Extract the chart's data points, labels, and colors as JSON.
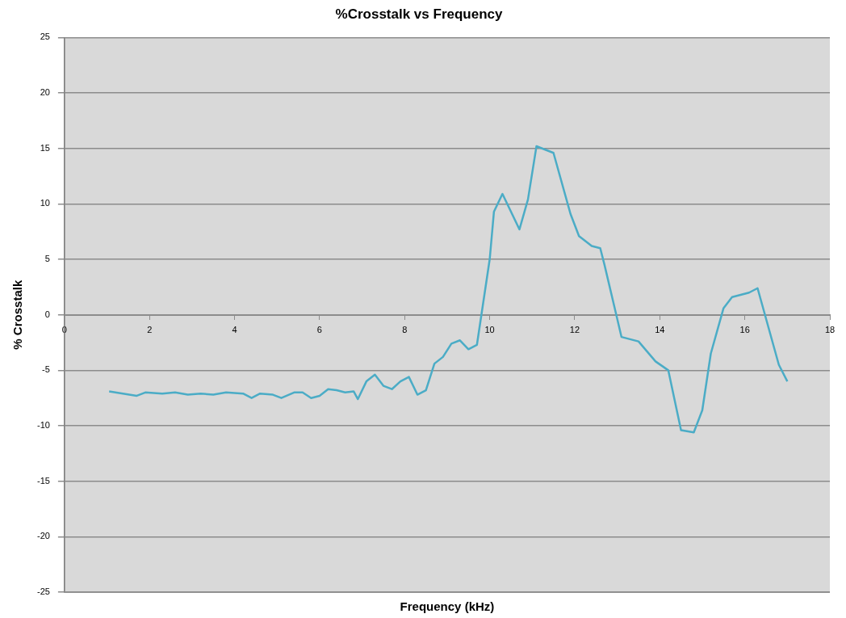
{
  "chart_data": {
    "type": "line",
    "title": "%Crosstalk vs Frequency",
    "xlabel": "Frequency (kHz)",
    "ylabel": "% Crosstalk",
    "x": [
      1.05,
      1.7,
      1.9,
      2.3,
      2.6,
      2.9,
      3.2,
      3.5,
      3.8,
      4.2,
      4.4,
      4.6,
      4.9,
      5.1,
      5.4,
      5.6,
      5.8,
      6.0,
      6.2,
      6.4,
      6.6,
      6.8,
      6.9,
      7.1,
      7.3,
      7.5,
      7.7,
      7.9,
      8.1,
      8.3,
      8.5,
      8.7,
      8.9,
      9.1,
      9.3,
      9.5,
      9.7,
      10.0,
      10.1,
      10.3,
      10.7,
      10.9,
      11.1,
      11.5,
      11.9,
      12.1,
      12.4,
      12.6,
      12.7,
      13.1,
      13.5,
      13.9,
      14.2,
      14.5,
      14.8,
      15.0,
      15.2,
      15.5,
      15.7,
      16.1,
      16.3,
      16.8,
      17.0
    ],
    "series": [
      {
        "color": "#4bacc6",
        "values": [
          -6.9,
          -7.3,
          -7.0,
          -7.1,
          -7.0,
          -7.2,
          -7.1,
          -7.2,
          -7.0,
          -7.1,
          -7.5,
          -7.1,
          -7.2,
          -7.5,
          -7.0,
          -7.0,
          -7.5,
          -7.3,
          -6.7,
          -6.8,
          -7.0,
          -6.9,
          -7.6,
          -6.0,
          -5.4,
          -6.4,
          -6.7,
          -6.0,
          -5.6,
          -7.2,
          -6.8,
          -4.4,
          -3.8,
          -2.6,
          -2.3,
          -3.1,
          -2.7,
          5.0,
          9.3,
          10.9,
          7.7,
          10.4,
          15.2,
          14.6,
          9.1,
          7.1,
          6.2,
          6.0,
          4.5,
          -2.0,
          -2.4,
          -4.2,
          -5.0,
          -10.4,
          -10.6,
          -8.6,
          -3.5,
          0.6,
          1.6,
          2.0,
          2.4,
          -4.5,
          -6.0
        ]
      }
    ],
    "xlim": [
      0,
      18
    ],
    "xticks": [
      0,
      2,
      4,
      6,
      8,
      10,
      12,
      14,
      16,
      18
    ],
    "ylim": [
      -25,
      25
    ],
    "yticks": [
      -25,
      -20,
      -15,
      -10,
      -5,
      0,
      5,
      10,
      15,
      20,
      25
    ],
    "grid": "y",
    "legend": false,
    "marker": "none",
    "line_style": "solid"
  }
}
